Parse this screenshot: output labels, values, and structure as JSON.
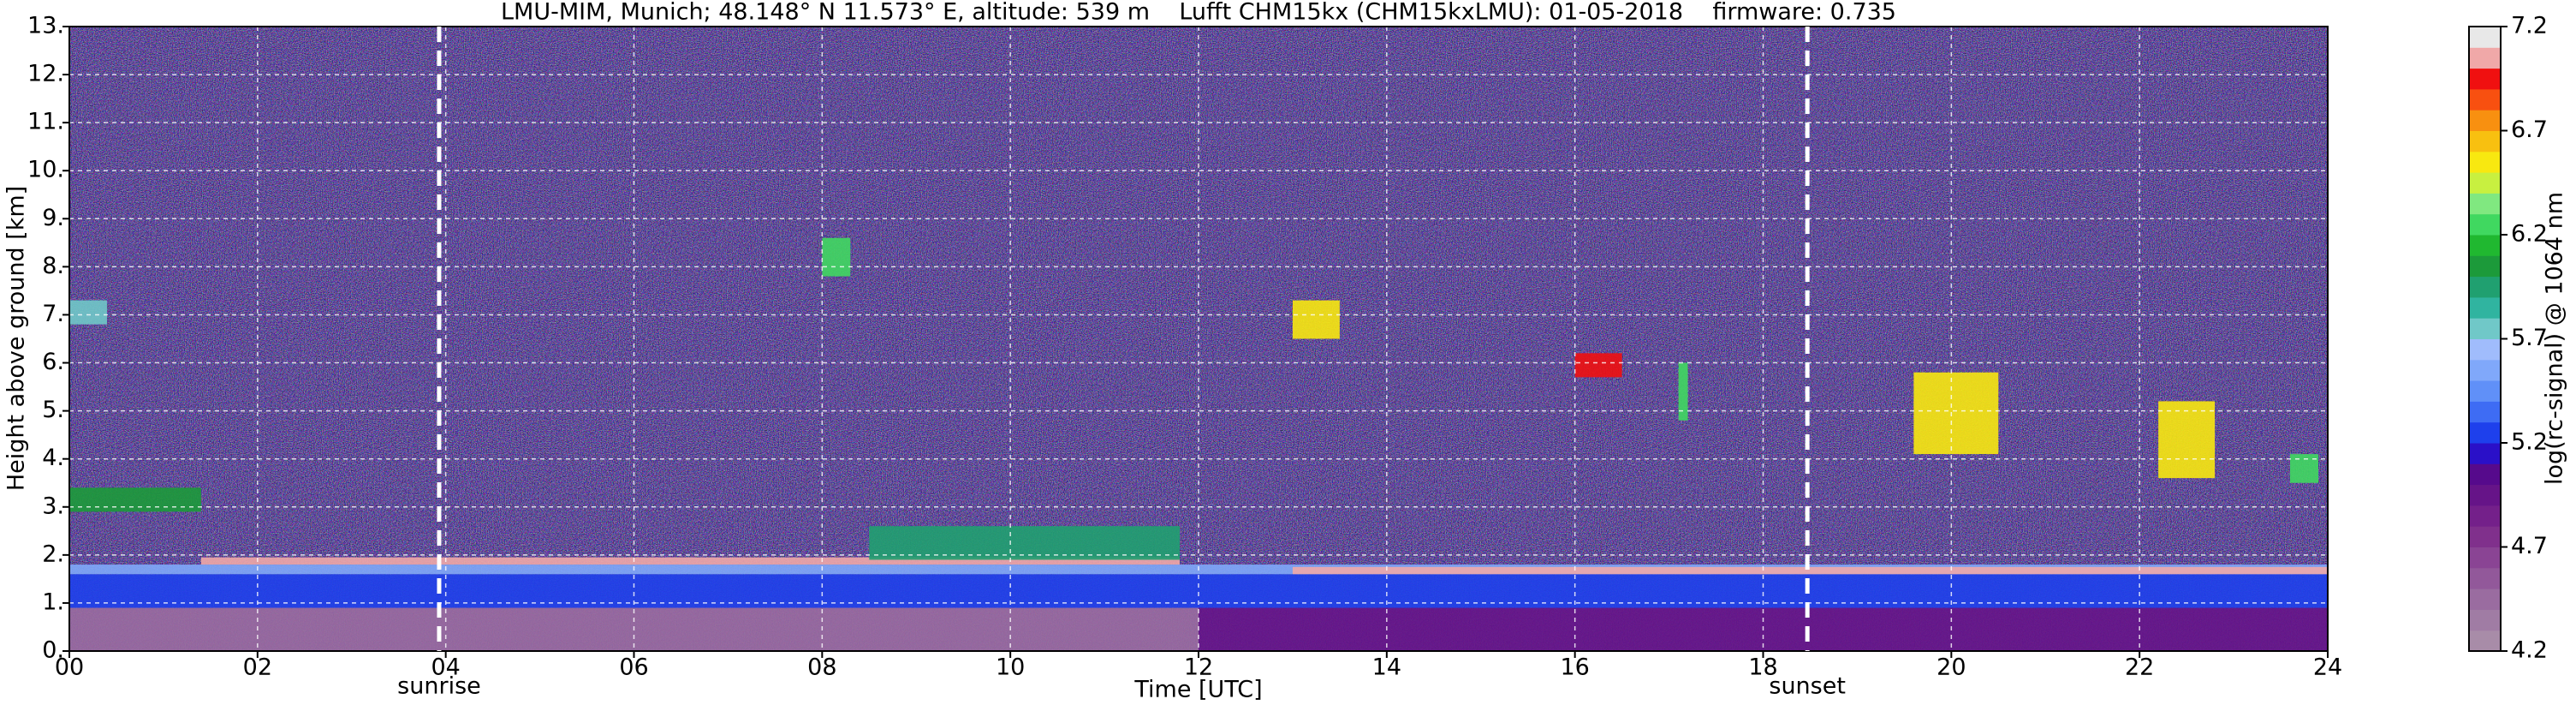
{
  "chart_data": {
    "type": "heatmap",
    "title": "LMU-MIM, Munich; 48.148° N 11.573° E, altitude: 539 m    Lufft CHM15kx (CHM15kxLMU): 01-05-2018    firmware: 0.735",
    "x_label": "Time [UTC]",
    "y_label": "Height above ground [km]",
    "colorbar_label": "log(rc-signal) @ 1064 nm",
    "xlim": [
      0,
      24
    ],
    "xticks": [
      {
        "value": 0,
        "label": "00"
      },
      {
        "value": 2,
        "label": "02"
      },
      {
        "value": 4,
        "label": "04"
      },
      {
        "value": 6,
        "label": "06"
      },
      {
        "value": 8,
        "label": "08"
      },
      10,
      12,
      14,
      16,
      18,
      20,
      22,
      24
    ],
    "ylim": [
      0,
      13
    ],
    "yticks": [
      {
        "value": 0,
        "label": "0."
      },
      {
        "value": 1,
        "label": "1."
      },
      {
        "value": 2,
        "label": "2."
      },
      {
        "value": 3,
        "label": "3."
      },
      {
        "value": 4,
        "label": "4."
      },
      {
        "value": 5,
        "label": "5."
      },
      {
        "value": 6,
        "label": "6."
      },
      {
        "value": 7,
        "label": "7."
      },
      {
        "value": 8,
        "label": "8."
      },
      {
        "value": 9,
        "label": "9."
      },
      {
        "value": 10,
        "label": "10."
      },
      {
        "value": 11,
        "label": "11."
      },
      {
        "value": 12,
        "label": "12."
      },
      {
        "value": 13,
        "label": "13."
      }
    ],
    "clim": [
      4.2,
      7.2
    ],
    "cticks": [
      4.2,
      4.7,
      5.2,
      5.7,
      6.2,
      6.7,
      7.2
    ],
    "grid": true,
    "colormap": [
      "#a88ca8",
      "#a07ca4",
      "#9a6ca0",
      "#92589a",
      "#8a4494",
      "#80308c",
      "#74208a",
      "#661488",
      "#560a8c",
      "#2a10c8",
      "#1e40ec",
      "#3e6cf4",
      "#6090f8",
      "#80a8fa",
      "#a0bcfc",
      "#70c8c8",
      "#30b4a0",
      "#20a070",
      "#1c9a3a",
      "#20b830",
      "#40d860",
      "#80e880",
      "#c8f040",
      "#f8e810",
      "#f8c010",
      "#f89010",
      "#f85010",
      "#f01010",
      "#f0a8a8",
      "#e8e8e8"
    ],
    "background_color": "#4a4682",
    "layers": [
      {
        "x": [
          0,
          12
        ],
        "y": [
          0,
          0.9
        ],
        "value": 4.5
      },
      {
        "x": [
          12,
          24
        ],
        "y": [
          0,
          0.9
        ],
        "value": 4.9
      },
      {
        "x": [
          0,
          24
        ],
        "y": [
          0.9,
          1.6
        ],
        "value": 5.2
      },
      {
        "x": [
          0,
          24
        ],
        "y": [
          1.6,
          1.8
        ],
        "value": 5.6
      },
      {
        "x": [
          1.4,
          11.8
        ],
        "y": [
          1.8,
          1.95
        ],
        "value": 7.1
      },
      {
        "x": [
          13,
          24
        ],
        "y": [
          1.6,
          1.75
        ],
        "value": 7.1
      },
      {
        "x": [
          8.5,
          11.8
        ],
        "y": [
          1.9,
          2.6
        ],
        "value": 5.9
      },
      {
        "x": [
          0,
          1.4
        ],
        "y": [
          2.9,
          3.4
        ],
        "value": 6.1
      },
      {
        "x": [
          0,
          0.4
        ],
        "y": [
          6.8,
          7.3
        ],
        "value": 5.8
      },
      {
        "x": [
          8,
          8.3
        ],
        "y": [
          7.8,
          8.6
        ],
        "value": 6.3
      },
      {
        "x": [
          13,
          13.5
        ],
        "y": [
          6.5,
          7.3
        ],
        "value": 6.5
      },
      {
        "x": [
          16,
          16.5
        ],
        "y": [
          5.7,
          6.2
        ],
        "value": 6.9
      },
      {
        "x": [
          17.1,
          17.2
        ],
        "y": [
          4.8,
          6
        ],
        "value": 6.3
      },
      {
        "x": [
          19.6,
          20.5
        ],
        "y": [
          4.1,
          5.8
        ],
        "value": 6.5
      },
      {
        "x": [
          22.2,
          22.8
        ],
        "y": [
          3.6,
          5.2
        ],
        "value": 6.6
      },
      {
        "x": [
          23.6,
          23.9
        ],
        "y": [
          3.5,
          4.1
        ],
        "value": 6.3
      }
    ],
    "annotations": [
      {
        "text": "sunrise",
        "x": 3.93
      },
      {
        "text": "sunset",
        "x": 18.47
      }
    ]
  }
}
